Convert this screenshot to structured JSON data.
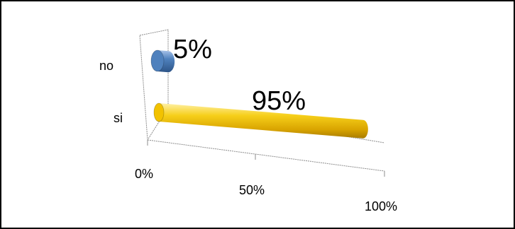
{
  "chart_data": {
    "type": "bar",
    "orientation": "horizontal",
    "style": "3d-cylinder",
    "categories": [
      "si",
      "no"
    ],
    "values": [
      95,
      5
    ],
    "value_labels": [
      "95%",
      "5%"
    ],
    "bar_colors": [
      "#f2c200",
      "#4f81bd"
    ],
    "x_ticks": [
      "0%",
      "50%",
      "100%"
    ],
    "xlim": [
      0,
      100
    ],
    "title": "",
    "xlabel": "",
    "ylabel": "",
    "grid": false,
    "legend": "none"
  }
}
